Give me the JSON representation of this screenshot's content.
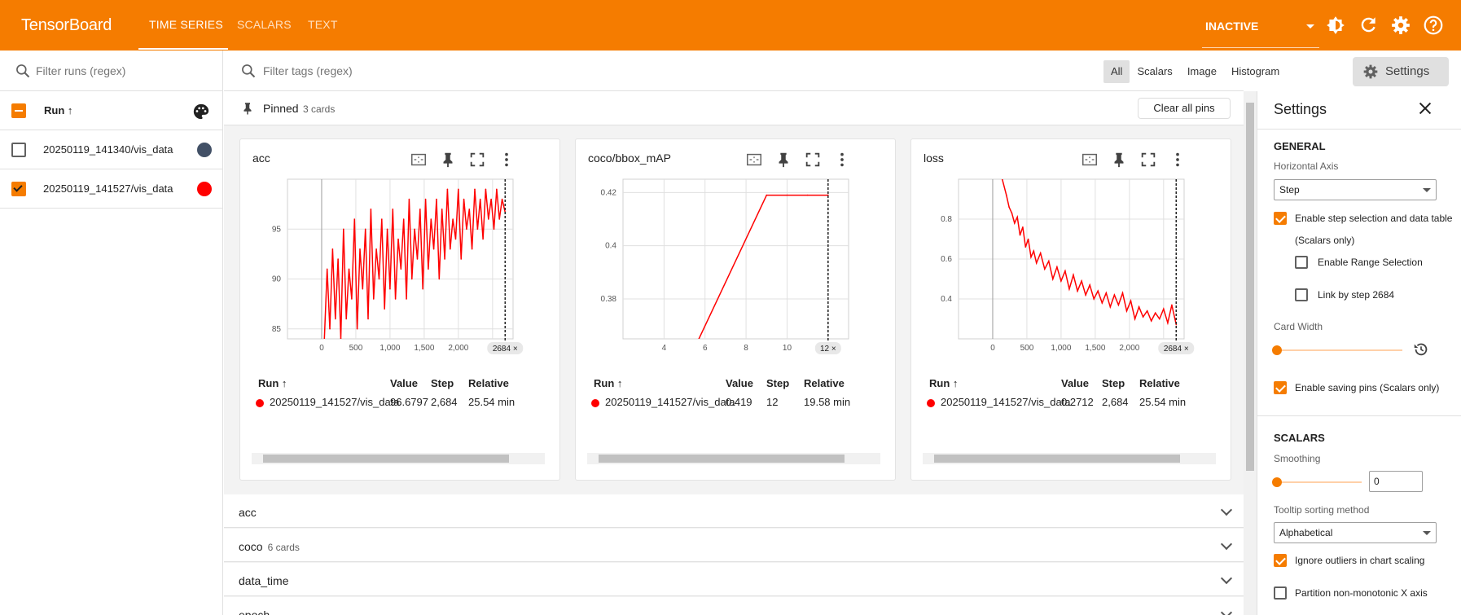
{
  "header": {
    "logo": "TensorBoard",
    "tabs": [
      "TIME SERIES",
      "SCALARS",
      "TEXT"
    ],
    "status": "INACTIVE"
  },
  "runs": {
    "filter_placeholder": "Filter runs (regex)",
    "header": "Run ↑",
    "items": [
      {
        "name": "20250119_141340/vis_data",
        "checked": false,
        "color": "#425066"
      },
      {
        "name": "20250119_141527/vis_data",
        "checked": true,
        "color": "#ff0000"
      }
    ]
  },
  "toolbar": {
    "filter_placeholder": "Filter tags (regex)",
    "types": [
      "All",
      "Scalars",
      "Image",
      "Histogram"
    ],
    "settings_label": "Settings"
  },
  "pinned": {
    "label": "Pinned",
    "count": "3 cards",
    "clear_label": "Clear all pins"
  },
  "table_headers": {
    "run": "Run ↑",
    "value": "Value",
    "step": "Step",
    "relative": "Relative"
  },
  "cards": [
    {
      "title": "acc",
      "run": "20250119_141527/vis_data",
      "value": "96.6797",
      "step": "2,684",
      "relative": "25.54 min",
      "badge": "2684 ×"
    },
    {
      "title": "coco/bbox_mAP",
      "run": "20250119_141527/vis_data",
      "value": "0.419",
      "step": "12",
      "relative": "19.58 min",
      "badge": "12 ×"
    },
    {
      "title": "loss",
      "run": "20250119_141527/vis_data",
      "value": "0.2712",
      "step": "2,684",
      "relative": "25.54 min",
      "badge": "2684 ×"
    }
  ],
  "groups": [
    {
      "name": "acc",
      "sub": ""
    },
    {
      "name": "coco",
      "sub": "6 cards"
    },
    {
      "name": "data_time",
      "sub": ""
    },
    {
      "name": "epoch",
      "sub": ""
    }
  ],
  "settings": {
    "title": "Settings",
    "general": "GENERAL",
    "horizontal_axis_label": "Horizontal Axis",
    "horizontal_axis_value": "Step",
    "step_selection": "Enable step selection and data table",
    "scalars_only": "(Scalars only)",
    "range_selection": "Enable Range Selection",
    "link_by_step": "Link by step 2684",
    "card_width": "Card Width",
    "saving_pins": "Enable saving pins (Scalars only)",
    "scalars": "SCALARS",
    "smoothing": "Smoothing",
    "smoothing_value": "0",
    "tooltip_sort": "Tooltip sorting method",
    "tooltip_sort_value": "Alphabetical",
    "ignore_outliers": "Ignore outliers in chart scaling",
    "partition": "Partition non-monotonic X axis"
  },
  "chart_data": [
    {
      "type": "line",
      "title": "acc",
      "x_ticks": [
        "0",
        "500",
        "1,000",
        "1,500",
        "2,000",
        "2,"
      ],
      "y_ticks": [
        "85",
        "90",
        "95"
      ],
      "xlim": [
        -500,
        2800
      ],
      "ylim": [
        84,
        100
      ],
      "series": [
        {
          "name": "20250119_141527/vis_data",
          "color": "#ff0000",
          "x": [
            40,
            80,
            120,
            160,
            200,
            240,
            280,
            320,
            360,
            400,
            440,
            480,
            520,
            560,
            600,
            640,
            680,
            720,
            760,
            800,
            840,
            880,
            920,
            960,
            1000,
            1040,
            1080,
            1120,
            1160,
            1200,
            1240,
            1280,
            1320,
            1360,
            1400,
            1440,
            1480,
            1520,
            1560,
            1600,
            1640,
            1680,
            1720,
            1760,
            1800,
            1840,
            1880,
            1920,
            1960,
            2000,
            2040,
            2080,
            2120,
            2160,
            2200,
            2240,
            2280,
            2320,
            2360,
            2400,
            2440,
            2480,
            2520,
            2560,
            2600,
            2640,
            2684
          ],
          "y": [
            84,
            91,
            85,
            93,
            86,
            92,
            84,
            95,
            86,
            91,
            88,
            96,
            85,
            93,
            89,
            95,
            86,
            97,
            88,
            93,
            90,
            96,
            87,
            95,
            89,
            97,
            88,
            94,
            91,
            96,
            88,
            98,
            90,
            95,
            92,
            97,
            89,
            98,
            91,
            96,
            93,
            98,
            90,
            97,
            92,
            99,
            93,
            96,
            94,
            99,
            92,
            98,
            95,
            97,
            93,
            99,
            95,
            98,
            94,
            99,
            96,
            98,
            95,
            99,
            96,
            98,
            96.68
          ]
        }
      ]
    },
    {
      "type": "line",
      "title": "coco/bbox_mAP",
      "x_ticks": [
        "4",
        "6",
        "8",
        "10",
        "12"
      ],
      "y_ticks": [
        "0.38",
        "0.4",
        "0.42"
      ],
      "xlim": [
        2,
        13
      ],
      "ylim": [
        0.365,
        0.425
      ],
      "series": [
        {
          "name": "20250119_141527/vis_data",
          "color": "#ff0000",
          "x": [
            5.7,
            9,
            10,
            11,
            12
          ],
          "y": [
            0.365,
            0.419,
            0.419,
            0.419,
            0.419
          ]
        }
      ]
    },
    {
      "type": "line",
      "title": "loss",
      "x_ticks": [
        "0",
        "500",
        "1,000",
        "1,500",
        "2,000",
        "2,"
      ],
      "y_ticks": [
        "0.4",
        "0.6",
        "0.8"
      ],
      "xlim": [
        -500,
        2800
      ],
      "ylim": [
        0.2,
        1.0
      ],
      "series": [
        {
          "name": "20250119_141527/vis_data",
          "color": "#ff0000",
          "x": [
            140,
            200,
            240,
            280,
            320,
            360,
            400,
            440,
            480,
            520,
            560,
            600,
            640,
            700,
            760,
            820,
            880,
            940,
            1000,
            1060,
            1120,
            1180,
            1240,
            1300,
            1360,
            1420,
            1480,
            1540,
            1600,
            1660,
            1720,
            1780,
            1840,
            1900,
            1960,
            2020,
            2080,
            2140,
            2200,
            2260,
            2320,
            2380,
            2440,
            2500,
            2560,
            2620,
            2684
          ],
          "y": [
            1.0,
            0.92,
            0.86,
            0.83,
            0.78,
            0.81,
            0.72,
            0.76,
            0.66,
            0.7,
            0.61,
            0.64,
            0.58,
            0.63,
            0.55,
            0.59,
            0.5,
            0.56,
            0.49,
            0.54,
            0.45,
            0.52,
            0.44,
            0.49,
            0.42,
            0.47,
            0.4,
            0.44,
            0.38,
            0.43,
            0.36,
            0.42,
            0.37,
            0.43,
            0.34,
            0.39,
            0.3,
            0.36,
            0.31,
            0.34,
            0.29,
            0.33,
            0.3,
            0.35,
            0.28,
            0.37,
            0.2712
          ]
        }
      ]
    }
  ]
}
